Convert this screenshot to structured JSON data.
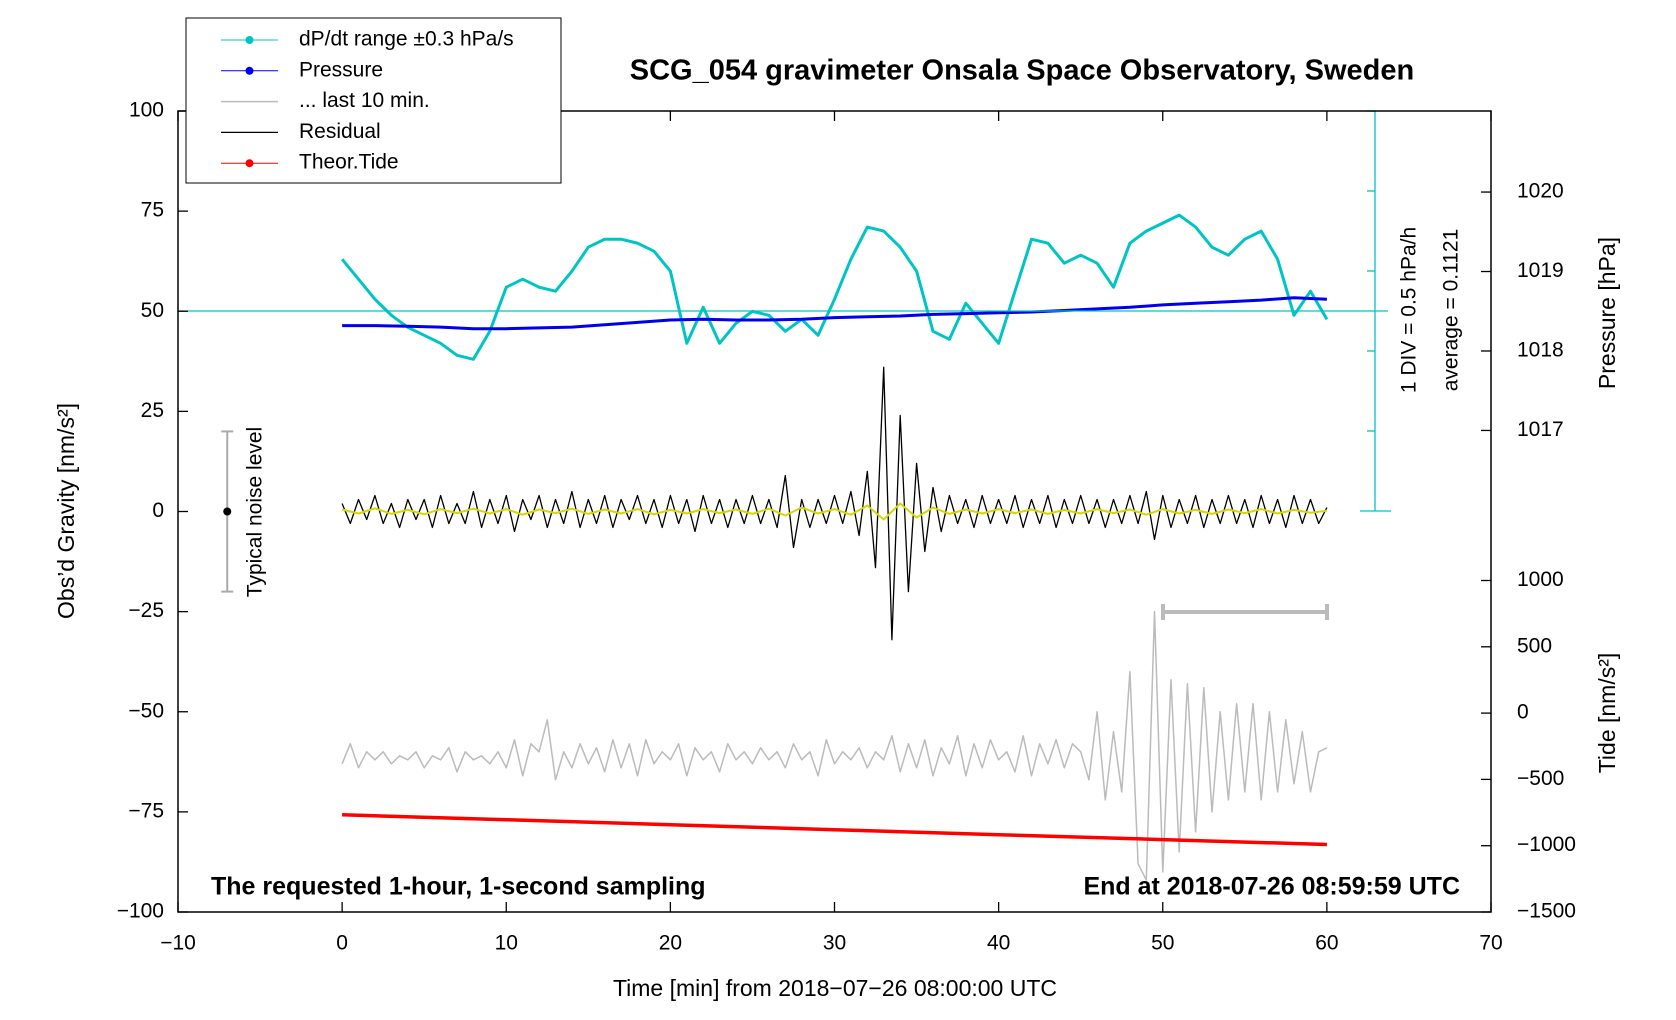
{
  "chart_data": {
    "type": "line",
    "title": "SCG_054 gravimeter Onsala Space Observatory, Sweden",
    "x_label": "Time [min] from 2018−07−26 08:00:00 UTC",
    "y_label": "Obs’d Gravity [nm/s²]",
    "y2_label": "Pressure [hPa]",
    "y3_label": "Tide [nm/s²]",
    "annotations": [
      "1 DIV = 0.5 hPa/h",
      "average = 0.1121",
      "The requested 1-hour, 1-second sampling",
      "End at 2018-07-26 08:59:59 UTC"
    ],
    "noise_level": {
      "label": "Typical noise level",
      "x": -7,
      "low": -20,
      "center": 0,
      "high": 20
    },
    "xlim": [
      -10,
      70
    ],
    "xticks": [
      {
        "value": -10,
        "label": "−10"
      },
      0,
      10,
      20,
      30,
      40,
      50,
      60,
      70
    ],
    "ylim": [
      -100,
      100
    ],
    "yticks": [
      {
        "value": -100,
        "label": "−100"
      },
      {
        "value": -75,
        "label": "−75"
      },
      {
        "value": -50,
        "label": "−50"
      },
      {
        "value": -25,
        "label": "−25"
      },
      0,
      25,
      50,
      75,
      100
    ],
    "y2lim": [
      1015.98,
      1021.02
    ],
    "y2ticks": [
      1017,
      1018,
      1019,
      1020
    ],
    "y3lim": [
      -1500,
      1025
    ],
    "y3ticks": [
      {
        "value": -1500,
        "label": "−1500"
      },
      {
        "value": -1000,
        "label": "−1000"
      },
      {
        "value": -500,
        "label": "−500"
      },
      0,
      500,
      1000
    ],
    "series": [
      {
        "name": "dP/dt range ±0.3 hPa/s",
        "color": "#00c4c4",
        "marker": "circle",
        "width": 3,
        "x": [
          0,
          1,
          2,
          3,
          4,
          5,
          6,
          7,
          8,
          9,
          10,
          11,
          12,
          13,
          14,
          15,
          16,
          17,
          18,
          19,
          20,
          21,
          22,
          23,
          24,
          25,
          26,
          27,
          28,
          29,
          30,
          31,
          32,
          33,
          34,
          35,
          36,
          37,
          38,
          39,
          40,
          41,
          42,
          43,
          44,
          45,
          46,
          47,
          48,
          49,
          50,
          51,
          52,
          53,
          54,
          55,
          56,
          57,
          58,
          59,
          60
        ],
        "values": [
          63,
          58,
          53,
          49,
          46,
          44,
          42,
          39,
          38,
          45,
          56,
          58,
          56,
          55,
          60,
          66,
          68,
          68,
          67,
          65,
          60,
          42,
          51,
          42,
          47,
          50,
          49,
          45,
          48,
          44,
          53,
          63,
          71,
          70,
          66,
          60,
          45,
          43,
          52,
          47,
          42,
          55,
          68,
          67,
          62,
          64,
          62,
          56,
          67,
          70,
          72,
          74,
          71,
          66,
          64,
          68,
          70,
          63,
          49,
          55,
          48
        ]
      },
      {
        "name": "Pressure",
        "color": "#0000ee",
        "marker": "circle",
        "width": 3,
        "axis": "y2",
        "x": [
          0,
          2,
          4,
          6,
          8,
          10,
          12,
          14,
          16,
          18,
          20,
          22,
          24,
          26,
          28,
          30,
          32,
          34,
          36,
          38,
          40,
          42,
          44,
          46,
          48,
          50,
          52,
          54,
          56,
          58,
          60
        ],
        "values": [
          1018.32,
          1018.32,
          1018.31,
          1018.3,
          1018.28,
          1018.28,
          1018.29,
          1018.3,
          1018.33,
          1018.36,
          1018.39,
          1018.4,
          1018.39,
          1018.39,
          1018.4,
          1018.42,
          1018.43,
          1018.44,
          1018.46,
          1018.47,
          1018.48,
          1018.49,
          1018.51,
          1018.53,
          1018.55,
          1018.58,
          1018.6,
          1018.62,
          1018.64,
          1018.67,
          1018.65
        ]
      },
      {
        "name": "... last 10 min.",
        "color": "#bbbbbb",
        "width": 1.5,
        "x": [
          0,
          0.5,
          1,
          1.5,
          2,
          2.5,
          3,
          3.5,
          4,
          4.5,
          5,
          5.5,
          6,
          6.5,
          7,
          7.5,
          8,
          8.5,
          9,
          9.5,
          10,
          10.5,
          11,
          11.5,
          12,
          12.5,
          13,
          13.5,
          14,
          14.5,
          15,
          15.5,
          16,
          16.5,
          17,
          17.5,
          18,
          18.5,
          19,
          19.5,
          20,
          20.5,
          21,
          21.5,
          22,
          22.5,
          23,
          23.5,
          24,
          24.5,
          25,
          25.5,
          26,
          26.5,
          27,
          27.5,
          28,
          28.5,
          29,
          29.5,
          30,
          30.5,
          31,
          31.5,
          32,
          32.5,
          33,
          33.5,
          34,
          34.5,
          35,
          35.5,
          36,
          36.5,
          37,
          37.5,
          38,
          38.5,
          39,
          39.5,
          40,
          40.5,
          41,
          41.5,
          42,
          42.5,
          43,
          43.5,
          44,
          44.5,
          45,
          45.5,
          46,
          46.5,
          47,
          47.5,
          48,
          48.5,
          49,
          49.5,
          50,
          50.5,
          51,
          51.5,
          52,
          52.5,
          53,
          53.5,
          54,
          54.5,
          55,
          55.5,
          56,
          56.5,
          57,
          57.5,
          58,
          58.5,
          59,
          59.5,
          60
        ],
        "values": [
          -63,
          -58,
          -64,
          -60,
          -62,
          -60,
          -63,
          -61,
          -62,
          -60,
          -64,
          -61,
          -62,
          -59,
          -65,
          -60,
          -62,
          -61,
          -63,
          -60,
          -64,
          -57,
          -66,
          -58,
          -60,
          -52,
          -67,
          -60,
          -64,
          -58,
          -63,
          -59,
          -65,
          -57,
          -64,
          -58,
          -66,
          -57,
          -63,
          -60,
          -62,
          -58,
          -66,
          -59,
          -62,
          -60,
          -65,
          -58,
          -62,
          -60,
          -63,
          -59,
          -62,
          -60,
          -64,
          -58,
          -62,
          -60,
          -66,
          -57,
          -63,
          -60,
          -62,
          -59,
          -64,
          -60,
          -62,
          -56,
          -65,
          -58,
          -64,
          -57,
          -66,
          -59,
          -63,
          -56,
          -66,
          -58,
          -64,
          -57,
          -62,
          -60,
          -65,
          -56,
          -66,
          -58,
          -63,
          -57,
          -64,
          -58,
          -60,
          -67,
          -50,
          -72,
          -55,
          -70,
          -40,
          -88,
          -92,
          -25,
          -90,
          -42,
          -85,
          -43,
          -80,
          -44,
          -75,
          -50,
          -72,
          -48,
          -70,
          -48,
          -72,
          -50,
          -70,
          -52,
          -68,
          -55,
          -70,
          -60,
          -59
        ]
      },
      {
        "name": "Residual",
        "color": "#000000",
        "width": 1.3,
        "x": [
          0,
          0.5,
          1,
          1.5,
          2,
          2.5,
          3,
          3.5,
          4,
          4.5,
          5,
          5.5,
          6,
          6.5,
          7,
          7.5,
          8,
          8.5,
          9,
          9.5,
          10,
          10.5,
          11,
          11.5,
          12,
          12.5,
          13,
          13.5,
          14,
          14.5,
          15,
          15.5,
          16,
          16.5,
          17,
          17.5,
          18,
          18.5,
          19,
          19.5,
          20,
          20.5,
          21,
          21.5,
          22,
          22.5,
          23,
          23.5,
          24,
          24.5,
          25,
          25.5,
          26,
          26.5,
          27,
          27.5,
          28,
          28.5,
          29,
          29.5,
          30,
          30.5,
          31,
          31.5,
          32,
          32.5,
          33,
          33.5,
          34,
          34.5,
          35,
          35.5,
          36,
          36.5,
          37,
          37.5,
          38,
          38.5,
          39,
          39.5,
          40,
          40.5,
          41,
          41.5,
          42,
          42.5,
          43,
          43.5,
          44,
          44.5,
          45,
          45.5,
          46,
          46.5,
          47,
          47.5,
          48,
          48.5,
          49,
          49.5,
          50,
          50.5,
          51,
          51.5,
          52,
          52.5,
          53,
          53.5,
          54,
          54.5,
          55,
          55.5,
          56,
          56.5,
          57,
          57.5,
          58,
          58.5,
          59,
          59.5,
          60
        ],
        "values": [
          2,
          -3,
          3,
          -2,
          4,
          -3,
          2,
          -4,
          3,
          -2,
          3,
          -4,
          4,
          -3,
          2,
          -3,
          5,
          -4,
          3,
          -3,
          4,
          -5,
          3,
          -2,
          4,
          -4,
          3,
          -3,
          5,
          -4,
          3,
          -3,
          4,
          -4,
          3,
          -2,
          4,
          -3,
          3,
          -4,
          4,
          -3,
          3,
          -5,
          4,
          -3,
          3,
          -4,
          3,
          -3,
          4,
          -3,
          3,
          -4,
          9,
          -9,
          3,
          -4,
          3,
          -3,
          4,
          -3,
          5,
          -6,
          10,
          -14,
          36,
          -32,
          24,
          -20,
          12,
          -10,
          6,
          -5,
          4,
          -3,
          3,
          -4,
          4,
          -3,
          3,
          -3,
          4,
          -4,
          3,
          -3,
          4,
          -4,
          3,
          -3,
          4,
          -3,
          3,
          -4,
          3,
          -3,
          4,
          -3,
          5,
          -7,
          4,
          -4,
          3,
          -3,
          4,
          -4,
          3,
          -3,
          4,
          -3,
          3,
          -4,
          4,
          -3,
          3,
          -4,
          4,
          -3,
          3,
          -3,
          1
        ]
      },
      {
        "color": "#d6d600",
        "width": 2,
        "x": [
          0,
          1,
          2,
          3,
          4,
          5,
          6,
          7,
          8,
          9,
          10,
          11,
          12,
          13,
          14,
          15,
          16,
          17,
          18,
          19,
          20,
          21,
          22,
          23,
          24,
          25,
          26,
          27,
          28,
          29,
          30,
          31,
          32,
          33,
          34,
          35,
          36,
          37,
          38,
          39,
          40,
          41,
          42,
          43,
          44,
          45,
          46,
          47,
          48,
          49,
          50,
          51,
          52,
          53,
          54,
          55,
          56,
          57,
          58,
          59,
          60
        ],
        "values": [
          0.5,
          -0.5,
          0.8,
          -0.6,
          0.4,
          -0.7,
          0.6,
          -0.4,
          0.7,
          -0.5,
          0.6,
          -0.8,
          0.5,
          -0.4,
          0.7,
          -0.6,
          0.5,
          -0.5,
          0.6,
          -0.7,
          0.4,
          -0.5,
          0.6,
          -0.4,
          0.5,
          -0.6,
          0.7,
          -1,
          1,
          -0.5,
          0.6,
          -0.8,
          1.5,
          -2,
          2,
          -1.5,
          1,
          -0.6,
          0.5,
          -0.5,
          0.6,
          -0.4,
          0.5,
          -0.6,
          0.4,
          -0.5,
          0.6,
          -0.4,
          0.5,
          -0.8,
          0.6,
          -0.5,
          0.4,
          -0.6,
          0.5,
          -0.4,
          0.6,
          -0.5,
          0.4,
          -0.3,
          0.2
        ]
      },
      {
        "name": "Theor.Tide",
        "color": "#ff0000",
        "marker": "circle",
        "width": 3.5,
        "axis": "y3",
        "x": [
          0,
          10,
          20,
          30,
          40,
          50,
          60
        ],
        "values": [
          -767,
          -804,
          -842,
          -879,
          -917,
          -954,
          -991
        ]
      }
    ]
  }
}
